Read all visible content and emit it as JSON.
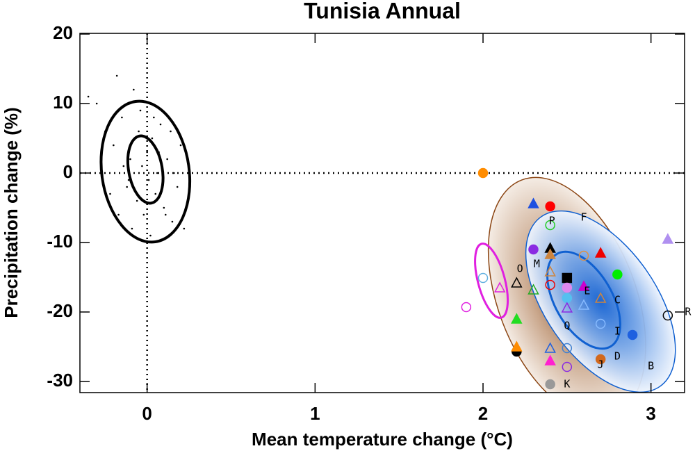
{
  "chart_data": {
    "type": "scatter",
    "title": "Tunisia Annual",
    "x_label": "Mean temperature change (°C)",
    "y_label": "Precipitation change (%)",
    "xlim": [
      -0.4,
      3.2
    ],
    "ylim": [
      -31.6,
      20.1
    ],
    "xticks": [
      0,
      1,
      2,
      3
    ],
    "yticks": [
      20,
      10,
      0,
      -10,
      -20,
      -30
    ],
    "vlines": [
      0
    ],
    "hlines": [
      0
    ],
    "ellipses": [
      {
        "center": [
          2.5,
          -18
        ],
        "rx": 0.41,
        "ry": 18.2,
        "angle": -21,
        "color": "#8b4513",
        "fill": "brown"
      },
      {
        "center": [
          2.7,
          -18.5
        ],
        "rx": 0.33,
        "ry": 14.9,
        "angle": -35,
        "color": "#1060d0",
        "fill": "blue"
      },
      {
        "center": [
          2.6,
          -18.3
        ],
        "rx": 0.17,
        "ry": 7.7,
        "angle": -30,
        "color": "#1060d0",
        "fill": "none"
      },
      {
        "center": [
          2.05,
          -15.5
        ],
        "rx": 0.08,
        "ry": 5.5,
        "angle": -15,
        "color": "#e020e0",
        "fill": "none"
      },
      {
        "center": [
          -0.01,
          0.2
        ],
        "rx": 0.26,
        "ry": 10.2,
        "angle": -8,
        "color": "#000000",
        "fill": "none"
      },
      {
        "center": [
          -0.01,
          0.5
        ],
        "rx": 0.1,
        "ry": 4.9,
        "angle": -10,
        "color": "#000000",
        "fill": "none"
      }
    ],
    "noise": {
      "x": [
        -0.35,
        -0.3,
        -0.25,
        -0.2,
        -0.18,
        -0.15,
        -0.12,
        -0.1,
        -0.08,
        -0.06,
        -0.05,
        -0.03,
        -0.02,
        0,
        0.01,
        0.03,
        0.05,
        0.06,
        0.08,
        0.1,
        0.12,
        0.15,
        0.18,
        0.2,
        0.22,
        0.25,
        -0.22,
        -0.14,
        -0.09,
        -0.04,
        0.02,
        0.07,
        0.11,
        0.16,
        -0.17,
        -0.07,
        0.04,
        0.09,
        0.14,
        -0.11
      ],
      "y": [
        11,
        10,
        6,
        4,
        14,
        8,
        -2,
        2,
        12,
        -4,
        6,
        1,
        -6,
        3,
        -1,
        5,
        -3,
        0,
        7,
        -5,
        2,
        -7,
        -2,
        4,
        -8,
        -3,
        -3,
        1,
        -8,
        9,
        -9,
        3,
        -6,
        0,
        -6,
        5,
        8,
        -2,
        6,
        -1
      ]
    },
    "points": [
      {
        "x": 2.0,
        "y": 0,
        "marker": "circle",
        "filled": true,
        "color": "#ff8c00"
      },
      {
        "x": 2.3,
        "y": -4.4,
        "marker": "triangle",
        "filled": true,
        "color": "#1e50e0"
      },
      {
        "x": 2.4,
        "y": -4.8,
        "marker": "circle",
        "filled": true,
        "color": "#ff0000"
      },
      {
        "x": 2.4,
        "y": -7.5,
        "marker": "circle",
        "filled": false,
        "color": "#22cc22"
      },
      {
        "x": 2.3,
        "y": -11,
        "marker": "circle",
        "filled": true,
        "color": "#8a2be2"
      },
      {
        "x": 2.4,
        "y": -10.8,
        "marker": "triangle",
        "filled": true,
        "color": "#000000"
      },
      {
        "x": 2.4,
        "y": -11.7,
        "marker": "triangle",
        "filled": true,
        "color": "#cd853f"
      },
      {
        "x": 2.6,
        "y": -11.9,
        "marker": "circle",
        "filled": false,
        "color": "#e09040"
      },
      {
        "x": 2.7,
        "y": -11.5,
        "marker": "triangle",
        "filled": true,
        "color": "#ee0000"
      },
      {
        "x": 2.8,
        "y": -14.6,
        "marker": "circle",
        "filled": true,
        "color": "#00ee00"
      },
      {
        "x": 3.1,
        "y": -9.5,
        "marker": "triangle",
        "filled": true,
        "color": "#b090f0"
      },
      {
        "x": 2.0,
        "y": -15.1,
        "marker": "circle",
        "filled": false,
        "color": "#60b0e0"
      },
      {
        "x": 2.1,
        "y": -16.5,
        "marker": "triangle",
        "filled": false,
        "color": "#e020e0"
      },
      {
        "x": 2.2,
        "y": -15.8,
        "marker": "triangle",
        "filled": false,
        "color": "#000000"
      },
      {
        "x": 2.3,
        "y": -16.8,
        "marker": "triangle",
        "filled": false,
        "color": "#22aa22"
      },
      {
        "x": 2.4,
        "y": -14.2,
        "marker": "triangle",
        "filled": false,
        "color": "#cd853f"
      },
      {
        "x": 2.4,
        "y": -16.1,
        "marker": "circle",
        "filled": false,
        "color": "#ee0000"
      },
      {
        "x": 2.5,
        "y": -15.1,
        "marker": "square",
        "filled": true,
        "color": "#000000"
      },
      {
        "x": 2.5,
        "y": -16.5,
        "marker": "circle",
        "filled": true,
        "color": "#dd88ee"
      },
      {
        "x": 2.6,
        "y": -16.3,
        "marker": "triangle",
        "filled": true,
        "color": "#cc00cc"
      },
      {
        "x": 2.5,
        "y": -18,
        "marker": "circle",
        "filled": true,
        "color": "#55c0f0"
      },
      {
        "x": 2.5,
        "y": -19.4,
        "marker": "triangle",
        "filled": false,
        "color": "#8a2be2"
      },
      {
        "x": 2.6,
        "y": -19,
        "marker": "triangle",
        "filled": false,
        "color": "#88bbff"
      },
      {
        "x": 2.7,
        "y": -18,
        "marker": "triangle",
        "filled": false,
        "color": "#cd853f"
      },
      {
        "x": 2.7,
        "y": -21.7,
        "marker": "circle",
        "filled": false,
        "color": "#88bbff"
      },
      {
        "x": 2.89,
        "y": -23.3,
        "marker": "circle",
        "filled": true,
        "color": "#1e60e0"
      },
      {
        "x": 1.9,
        "y": -19.3,
        "marker": "circle",
        "filled": false,
        "color": "#e020e0"
      },
      {
        "x": 2.2,
        "y": -21,
        "marker": "triangle",
        "filled": true,
        "color": "#22dd22"
      },
      {
        "x": 2.2,
        "y": -25.7,
        "marker": "circle",
        "filled": true,
        "color": "#000000"
      },
      {
        "x": 2.2,
        "y": -25,
        "marker": "triangle",
        "filled": true,
        "color": "#ff8c00"
      },
      {
        "x": 2.4,
        "y": -25.2,
        "marker": "triangle",
        "filled": false,
        "color": "#1e60e0"
      },
      {
        "x": 2.5,
        "y": -25.2,
        "marker": "circle",
        "filled": false,
        "color": "#4080d0"
      },
      {
        "x": 2.4,
        "y": -27,
        "marker": "triangle",
        "filled": true,
        "color": "#ff20d0"
      },
      {
        "x": 2.5,
        "y": -27.9,
        "marker": "circle",
        "filled": false,
        "color": "#8a2be2"
      },
      {
        "x": 2.7,
        "y": -26.8,
        "marker": "circle",
        "filled": true,
        "color": "#d2691e"
      },
      {
        "x": 3.1,
        "y": -20.5,
        "marker": "circle",
        "filled": false,
        "color": "#000000"
      },
      {
        "x": 2.4,
        "y": -30.4,
        "marker": "circle",
        "filled": true,
        "color": "#999999"
      }
    ],
    "labels": [
      {
        "text": "P",
        "x": 2.41,
        "y": -6.9
      },
      {
        "text": "F",
        "x": 2.6,
        "y": -6.4
      },
      {
        "text": "M",
        "x": 2.32,
        "y": -13.1
      },
      {
        "text": "O",
        "x": 2.22,
        "y": -13.8
      },
      {
        "text": "E",
        "x": 2.62,
        "y": -17
      },
      {
        "text": "C",
        "x": 2.8,
        "y": -18.3
      },
      {
        "text": "Q",
        "x": 2.5,
        "y": -22
      },
      {
        "text": "I",
        "x": 2.8,
        "y": -22.8
      },
      {
        "text": "J",
        "x": 2.7,
        "y": -27.6
      },
      {
        "text": "D",
        "x": 2.8,
        "y": -26.4
      },
      {
        "text": "B",
        "x": 3.0,
        "y": -27.8
      },
      {
        "text": "R",
        "x": 3.22,
        "y": -20
      },
      {
        "text": "K",
        "x": 2.5,
        "y": -30.4
      }
    ]
  }
}
